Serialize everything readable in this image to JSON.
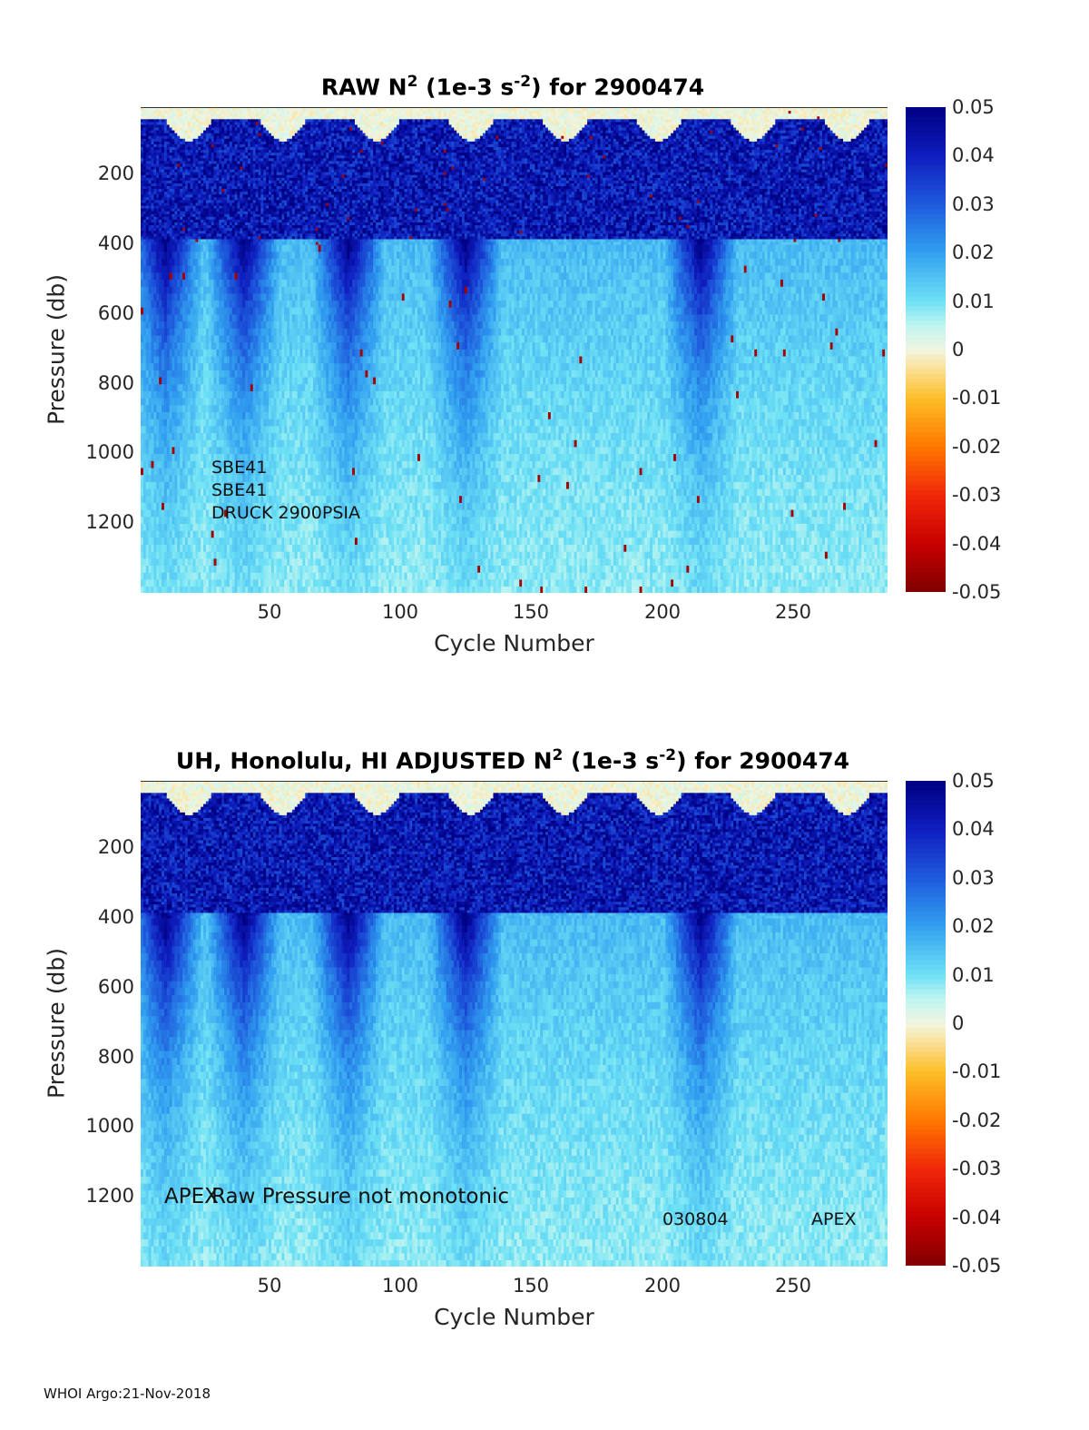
{
  "footer": "WHOI Argo:21-Nov-2018",
  "chart_data": [
    {
      "type": "heatmap",
      "title_prefix": "RAW N",
      "title_sup1": "2",
      "title_mid": " (1e-3 s",
      "title_sup2": "-2",
      "title_suffix": ") for 2900474",
      "xlabel": "Cycle Number",
      "ylabel": "Pressure (db)",
      "xlim": [
        1,
        286
      ],
      "ylim": [
        10,
        1400
      ],
      "y_reversed": true,
      "xticks": [
        50,
        100,
        150,
        200,
        250
      ],
      "yticks": [
        200,
        400,
        600,
        800,
        1000,
        1200
      ],
      "clim": [
        -0.05,
        0.05
      ],
      "colormap": "jet-like diverging",
      "colorbar_ticks": [
        "0.05",
        "0.04",
        "0.03",
        "0.02",
        "0.01",
        "0",
        "-0.01",
        "-0.02",
        "-0.03",
        "-0.04",
        "-0.05"
      ],
      "annotations": [
        "SBE41",
        "SBE41",
        "DRUCK 2900PSIA"
      ],
      "strong_stratification_cycles": [
        10,
        40,
        80,
        125,
        215
      ]
    },
    {
      "type": "heatmap",
      "title_prefix": "UH, Honolulu, HI  ADJUSTED N",
      "title_sup1": "2",
      "title_mid": " (1e-3 s",
      "title_sup2": "-2",
      "title_suffix": ") for 2900474",
      "xlabel": "Cycle Number",
      "ylabel": "Pressure (db)",
      "xlim": [
        1,
        286
      ],
      "ylim": [
        10,
        1400
      ],
      "y_reversed": true,
      "xticks": [
        50,
        100,
        150,
        200,
        250
      ],
      "yticks": [
        200,
        400,
        600,
        800,
        1000,
        1200
      ],
      "clim": [
        -0.05,
        0.05
      ],
      "colormap": "jet-like diverging",
      "colorbar_ticks": [
        "0.05",
        "0.04",
        "0.03",
        "0.02",
        "0.01",
        "0",
        "-0.01",
        "-0.02",
        "-0.03",
        "-0.04",
        "-0.05"
      ],
      "annotations": [
        "APEX",
        "Raw Pressure not monotonic",
        "030804",
        "APEX"
      ],
      "strong_stratification_cycles": [
        10,
        40,
        80,
        125,
        215
      ]
    }
  ]
}
